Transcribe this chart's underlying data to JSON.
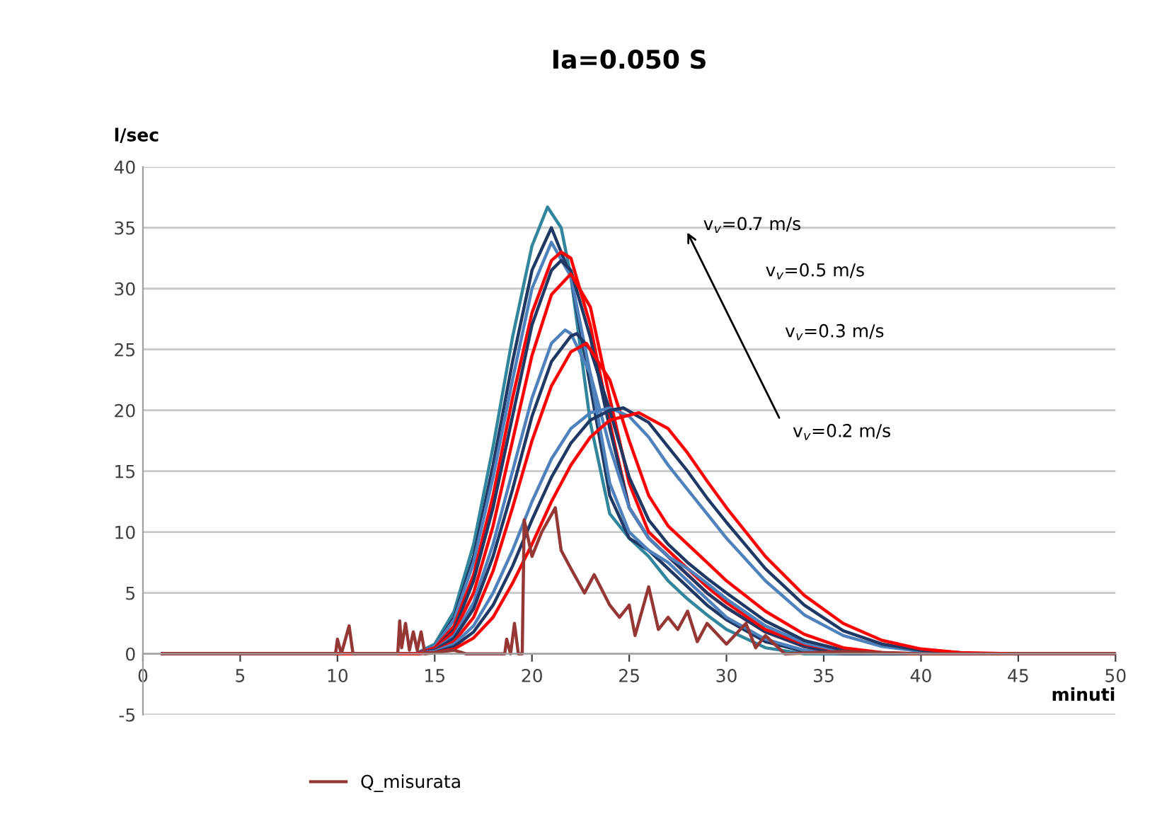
{
  "chart_data": {
    "type": "line",
    "title": "Ia=0.050 S",
    "xlabel": "minuti",
    "ylabel": "l/sec",
    "xlim": [
      0,
      50
    ],
    "xticks": [
      0,
      5,
      10,
      15,
      20,
      25,
      30,
      35,
      40,
      45,
      50
    ],
    "ylim": [
      -5,
      40
    ],
    "yticks": [
      -5,
      0,
      5,
      10,
      15,
      20,
      25,
      30,
      35,
      40
    ],
    "grid": "y",
    "legend": "bottom",
    "marker": "none",
    "line_style": "solid",
    "annotations": [
      "v$_{v}$=0.7 m/s",
      "v$_{v}$=0.5 m/s",
      "v$_{v}$=0.3 m/s",
      "v$_{v}$=0.2 m/s"
    ],
    "series": [
      {
        "color": "#31859c",
        "x": [
          1,
          14,
          15,
          16,
          17,
          18,
          19,
          20,
          20.8,
          21.5,
          22,
          23,
          24,
          25,
          26,
          27,
          28,
          29,
          30,
          32,
          34,
          50
        ],
        "values": [
          0,
          0,
          0.8,
          3.5,
          9,
          17,
          26,
          33.5,
          36.7,
          35,
          31,
          19,
          11.5,
          9.5,
          8,
          6,
          4.5,
          3.2,
          2,
          0.5,
          0,
          0
        ]
      },
      {
        "color": "#1f3864",
        "x": [
          1,
          14,
          15,
          16,
          17,
          18,
          19,
          20,
          21,
          22,
          23,
          24,
          25,
          26,
          27,
          28,
          29,
          30,
          32,
          34,
          36,
          50
        ],
        "values": [
          0,
          0,
          0.6,
          3,
          8,
          15.5,
          24,
          31.5,
          35,
          31,
          22,
          13,
          9.5,
          8.5,
          7,
          5.5,
          4,
          2.8,
          1,
          0.2,
          0,
          0
        ]
      },
      {
        "color": "#4f81bd",
        "x": [
          1,
          14,
          15,
          16,
          17,
          18,
          19,
          20,
          21,
          22,
          23,
          24,
          25,
          26,
          27,
          28,
          29,
          30,
          32,
          34,
          36,
          50
        ],
        "values": [
          0,
          0,
          0.6,
          2.8,
          7.5,
          14.5,
          22.5,
          30,
          33.8,
          31,
          23,
          14,
          10,
          8.5,
          7.5,
          6,
          4.5,
          3,
          1.2,
          0.3,
          0,
          0
        ]
      },
      {
        "color": "#ff0000",
        "x": [
          1,
          14,
          15,
          16,
          17,
          18,
          19,
          20,
          21,
          21.5,
          22,
          23,
          24,
          25,
          26,
          27,
          28,
          29,
          30,
          32,
          34,
          36,
          50
        ],
        "values": [
          0,
          0,
          0.5,
          2.3,
          6.5,
          13,
          21,
          28,
          32.3,
          33,
          32.5,
          27,
          19,
          12,
          9.5,
          8,
          6.5,
          5,
          3.8,
          1.8,
          0.6,
          0,
          0
        ]
      },
      {
        "color": "#1f3864",
        "x": [
          1,
          14,
          15,
          16,
          17,
          18,
          19,
          20,
          21,
          21.5,
          22,
          23,
          24,
          25,
          26,
          27,
          28,
          29,
          30,
          32,
          34,
          36,
          50
        ],
        "values": [
          0,
          0,
          0.4,
          2,
          6,
          12,
          19.5,
          27,
          31.5,
          32.3,
          31.5,
          26,
          18.5,
          12,
          9.5,
          8,
          6.5,
          5,
          3.8,
          1.8,
          0.6,
          0,
          0
        ]
      },
      {
        "color": "#ff0000",
        "x": [
          1,
          14,
          15,
          16,
          17,
          18,
          19,
          20,
          21,
          22,
          23,
          24,
          25,
          26,
          27,
          28,
          29,
          30,
          32,
          34,
          36,
          38,
          50
        ],
        "values": [
          0,
          0,
          0.4,
          1.8,
          5,
          10.5,
          17.5,
          24.5,
          29.5,
          31.2,
          28.5,
          21,
          14,
          10,
          8.5,
          7,
          5.5,
          4.2,
          2,
          0.8,
          0.2,
          0,
          0
        ]
      },
      {
        "color": "#4f81bd",
        "x": [
          1,
          14,
          15,
          16,
          17,
          18,
          19,
          20,
          21,
          21.7,
          22,
          23,
          24,
          25,
          26,
          27,
          28,
          29,
          30,
          32,
          34,
          36,
          38,
          50
        ],
        "values": [
          0,
          0,
          0.3,
          1.5,
          4.2,
          9,
          15,
          21,
          25.5,
          26.6,
          26.3,
          23,
          17,
          12,
          9.5,
          8,
          7,
          5.8,
          4.5,
          2.3,
          0.9,
          0.2,
          0,
          0
        ]
      },
      {
        "color": "#1f3864",
        "x": [
          1,
          14,
          15,
          16,
          17,
          18,
          19,
          20,
          21,
          22,
          22.3,
          23,
          24,
          25,
          26,
          27,
          28,
          29,
          30,
          32,
          34,
          36,
          38,
          50
        ],
        "values": [
          0,
          0,
          0.3,
          1.3,
          3.7,
          8,
          13.5,
          19.5,
          24,
          26.1,
          26.3,
          25,
          20,
          14.5,
          11,
          9,
          7.5,
          6.2,
          5,
          2.7,
          1.1,
          0.3,
          0,
          0
        ]
      },
      {
        "color": "#ff0000",
        "x": [
          1,
          14,
          15,
          16,
          17,
          18,
          19,
          20,
          21,
          22,
          22.8,
          24,
          25,
          26,
          27,
          28,
          29,
          30,
          32,
          34,
          36,
          38,
          40,
          50
        ],
        "values": [
          0,
          0,
          0.2,
          1,
          3,
          6.8,
          12,
          17.5,
          22,
          24.8,
          25.5,
          22.5,
          17.5,
          13,
          10.5,
          9,
          7.5,
          6,
          3.5,
          1.6,
          0.5,
          0.1,
          0,
          0
        ]
      },
      {
        "color": "#4f81bd",
        "x": [
          1,
          14,
          15,
          16,
          17,
          18,
          19,
          20,
          21,
          22,
          23,
          24,
          25,
          26,
          27,
          28,
          29,
          30,
          32,
          34,
          36,
          38,
          40,
          43,
          50
        ],
        "values": [
          0,
          0,
          0.2,
          0.8,
          2.3,
          5,
          8.5,
          12.5,
          16,
          18.5,
          19.8,
          20.2,
          19.5,
          17.8,
          15.5,
          13.5,
          11.5,
          9.5,
          6,
          3.2,
          1.5,
          0.6,
          0.2,
          0,
          0
        ]
      },
      {
        "color": "#1f3864",
        "x": [
          1,
          14,
          15,
          16,
          17,
          18,
          19,
          20,
          21,
          22,
          23,
          24,
          24.7,
          26,
          27,
          28,
          29,
          30,
          32,
          34,
          36,
          38,
          40,
          43,
          50
        ],
        "values": [
          0,
          0,
          0.1,
          0.6,
          1.8,
          4,
          7.2,
          11,
          14.5,
          17.3,
          19.2,
          20,
          20.2,
          19,
          17,
          15,
          12.8,
          10.8,
          7,
          4,
          1.9,
          0.8,
          0.3,
          0,
          0
        ]
      },
      {
        "color": "#ff0000",
        "x": [
          1,
          14,
          15,
          16,
          17,
          18,
          19,
          20,
          21,
          22,
          23,
          24,
          25.5,
          27,
          28,
          29,
          30,
          32,
          34,
          36,
          38,
          40,
          42,
          45,
          50
        ],
        "values": [
          0,
          0,
          0.1,
          0.4,
          1.3,
          3,
          5.8,
          9,
          12.5,
          15.5,
          17.8,
          19.2,
          19.8,
          18.5,
          16.5,
          14.2,
          12,
          8,
          4.8,
          2.5,
          1.1,
          0.4,
          0.1,
          0,
          0
        ]
      },
      {
        "name": "Q_misurata",
        "color": "#953735",
        "x": [
          1,
          9.9,
          10,
          10.2,
          10.6,
          10.8,
          13.1,
          13.2,
          13.3,
          13.5,
          13.7,
          13.9,
          14.1,
          14.3,
          14.5,
          16,
          16.6,
          18.6,
          18.7,
          18.9,
          19.1,
          19.3,
          19.5,
          19.6,
          20,
          20.5,
          21.2,
          21.5,
          22,
          22.7,
          23.2,
          24,
          24.5,
          25,
          25.3,
          26,
          26.5,
          27,
          27.5,
          28,
          28.5,
          29,
          30,
          31,
          31.5,
          32,
          33,
          36,
          40,
          50
        ],
        "values": [
          0,
          0,
          1.2,
          0,
          2.3,
          0,
          0,
          2.7,
          0.5,
          2.5,
          0.3,
          1.8,
          0.3,
          1.8,
          0,
          0.3,
          0,
          0,
          1.2,
          0,
          2.5,
          0,
          0,
          11,
          8,
          10,
          12,
          8.5,
          7,
          5,
          6.5,
          4,
          3,
          4,
          1.5,
          5.5,
          2,
          3,
          2,
          3.5,
          1,
          2.5,
          0.8,
          2.5,
          0.5,
          1.5,
          0,
          0.2,
          0,
          0
        ]
      }
    ]
  }
}
